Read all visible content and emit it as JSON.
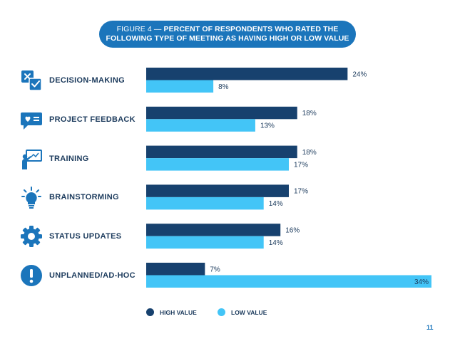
{
  "title": {
    "line1_prefix": "FIGURE 4 — ",
    "line1_bold": "PERCENT OF RESPONDENTS WHO RATED THE",
    "line2": "FOLLOWING TYPE OF MEETING AS HAVING HIGH OR LOW VALUE"
  },
  "colors": {
    "high": "#17416e",
    "low": "#43c5f7",
    "label": "#1b3a5c",
    "accent": "#1b75bb"
  },
  "icons": [
    "decision-checkbox-icon",
    "feedback-chat-heart-icon",
    "training-presenter-icon",
    "lightbulb-icon",
    "gear-icon",
    "exclamation-circle-icon"
  ],
  "page_number": "11",
  "chart_data": {
    "type": "bar",
    "orientation": "horizontal",
    "categories": [
      "DECISION-MAKING",
      "PROJECT FEEDBACK",
      "TRAINING",
      "BRAINSTORMING",
      "STATUS UPDATES",
      "UNPLANNED/AD-HOC"
    ],
    "series": [
      {
        "name": "HIGH VALUE",
        "values": [
          24,
          18,
          18,
          17,
          16,
          7
        ],
        "labels": [
          "24%",
          "18%",
          "18%",
          "17%",
          "16%",
          "7%"
        ]
      },
      {
        "name": "LOW VALUE",
        "values": [
          8,
          13,
          17,
          14,
          14,
          34
        ],
        "labels": [
          "8%",
          "13%",
          "17%",
          "14%",
          "14%",
          "34%"
        ]
      }
    ],
    "xlim": [
      0,
      34
    ],
    "grid": false,
    "legend_position": "bottom"
  }
}
